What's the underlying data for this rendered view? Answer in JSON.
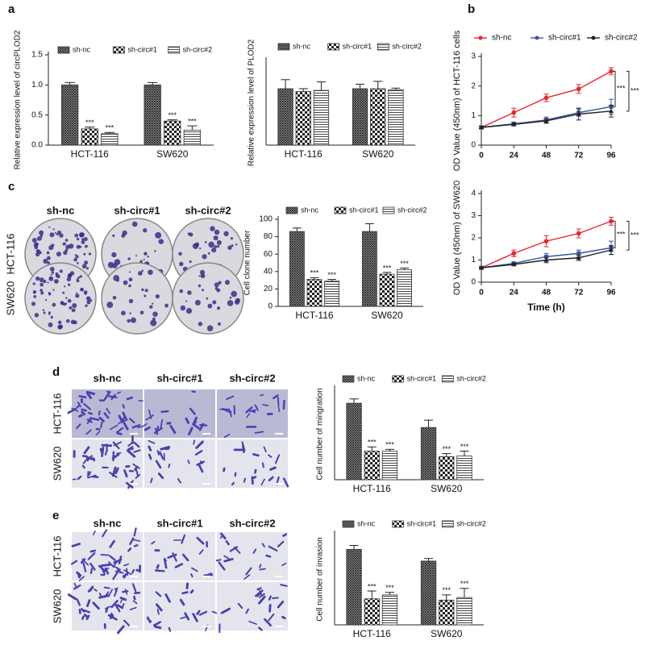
{
  "panel_labels": [
    "a",
    "b",
    "c",
    "d",
    "e"
  ],
  "image_panels": [
    {
      "columns": [
        "sh-nc",
        "sh-circ#1",
        "sh-circ#2"
      ],
      "rows": [
        "HCT-116",
        "SW620"
      ]
    },
    {
      "columns": [
        "sh-nc",
        "sh-circ#1",
        "sh-circ#2"
      ],
      "rows": [
        "HCT-116",
        "SW620"
      ]
    },
    {
      "columns": [
        "sh-nc",
        "sh-circ#1",
        "sh-circ#2"
      ],
      "rows": [
        "HCT-116",
        "SW620"
      ]
    }
  ],
  "chart_data": [
    {
      "type": "bar",
      "ylabel": "Relative expression level of circPLOD2",
      "categories": [
        "HCT-116",
        "SW620"
      ],
      "ylim": [
        0,
        1.5
      ],
      "yticks": [
        {
          "value": 0,
          "label": "0.0"
        },
        {
          "value": 0.5,
          "label": "0.5"
        },
        {
          "value": 1,
          "label": "1.0"
        },
        {
          "value": 1.5,
          "label": "1.5"
        }
      ],
      "series": [
        {
          "name": "sh-nc",
          "color": "#333333",
          "pattern": "crosshatch",
          "values": [
            1.0,
            1.0
          ],
          "errors": [
            0.04,
            0.04
          ]
        },
        {
          "name": "sh-circ#1",
          "color": "#333333",
          "pattern": "checker",
          "values": [
            0.27,
            0.4
          ],
          "errors": [
            0.03,
            0.02
          ],
          "annotations": [
            "***",
            "***"
          ]
        },
        {
          "name": "sh-circ#2",
          "color": "#333333",
          "pattern": "horizontal",
          "values": [
            0.19,
            0.25
          ],
          "errors": [
            0.02,
            0.07
          ],
          "annotations": [
            "***",
            "***"
          ]
        }
      ]
    },
    {
      "type": "bar",
      "ylabel": "Relative expression level of PLOD2",
      "categories": [
        "HCT-116",
        "SW620"
      ],
      "ylim": [
        0,
        1.5
      ],
      "series": [
        {
          "name": "sh-nc",
          "color": "#333333",
          "pattern": "crosshatch",
          "values": [
            1.0,
            1.0
          ],
          "errors": [
            0.16,
            0.08
          ]
        },
        {
          "name": "sh-circ#1",
          "color": "#333333",
          "pattern": "checker",
          "values": [
            0.95,
            1.0
          ],
          "errors": [
            0.05,
            0.13
          ]
        },
        {
          "name": "sh-circ#2",
          "color": "#333333",
          "pattern": "horizontal",
          "values": [
            0.97,
            0.98
          ],
          "errors": [
            0.15,
            0.03
          ]
        }
      ]
    },
    {
      "type": "line",
      "ylabel": "OD Value (450nm) of HCT-116 cells",
      "x": [
        0,
        24,
        48,
        72,
        96
      ],
      "xlim": [
        0,
        96
      ],
      "xticks": [
        0,
        24,
        48,
        72,
        96
      ],
      "ylim": [
        0,
        3
      ],
      "yticks": [
        0,
        1,
        2,
        3
      ],
      "annotations": [
        "***",
        "***"
      ],
      "series": [
        {
          "name": "sh-nc",
          "color": "#e8262a",
          "marker": "circle",
          "values": [
            0.6,
            1.1,
            1.6,
            1.9,
            2.5
          ],
          "errors": [
            0.05,
            0.15,
            0.13,
            0.15,
            0.12
          ]
        },
        {
          "name": "sh-circ#1",
          "color": "#3a53a4",
          "marker": "square",
          "values": [
            0.6,
            0.72,
            0.85,
            1.1,
            1.3
          ],
          "errors": [
            0.04,
            0.06,
            0.1,
            0.12,
            0.25
          ]
        },
        {
          "name": "sh-circ#2",
          "color": "#222222",
          "marker": "triangle",
          "values": [
            0.6,
            0.7,
            0.82,
            1.05,
            1.15
          ],
          "errors": [
            0.04,
            0.05,
            0.08,
            0.2,
            0.2
          ]
        }
      ]
    },
    {
      "type": "line",
      "ylabel": "OD Value (450nm) of SW620",
      "xlabel": "Time (h)",
      "x": [
        0,
        24,
        48,
        72,
        96
      ],
      "xlim": [
        0,
        96
      ],
      "xticks": [
        0,
        24,
        48,
        72,
        96
      ],
      "ylim": [
        0,
        4
      ],
      "yticks": [
        0,
        1,
        2,
        3,
        4
      ],
      "annotations": [
        "***",
        "***"
      ],
      "series": [
        {
          "color": "#e8262a",
          "marker": "circle",
          "values": [
            0.65,
            1.3,
            1.85,
            2.2,
            2.75
          ],
          "errors": [
            0.05,
            0.15,
            0.25,
            0.2,
            0.18
          ]
        },
        {
          "color": "#3a53a4",
          "marker": "square",
          "values": [
            0.65,
            0.85,
            1.15,
            1.3,
            1.55
          ],
          "errors": [
            0.04,
            0.06,
            0.15,
            0.15,
            0.3
          ]
        },
        {
          "color": "#222222",
          "marker": "triangle",
          "values": [
            0.65,
            0.8,
            1.0,
            1.1,
            1.45
          ],
          "errors": [
            0.04,
            0.05,
            0.12,
            0.12,
            0.2
          ]
        }
      ]
    },
    {
      "type": "bar",
      "ylabel": "Cell clone number",
      "categories": [
        "HCT-116",
        "SW620"
      ],
      "ylim": [
        0,
        100
      ],
      "yticks": [
        0,
        20,
        40,
        60,
        80,
        100
      ],
      "series": [
        {
          "name": "sh-nc",
          "color": "#333333",
          "pattern": "crosshatch",
          "values": [
            86,
            86
          ],
          "errors": [
            4,
            9
          ]
        },
        {
          "name": "sh-circ#1",
          "color": "#333333",
          "pattern": "checker",
          "values": [
            31,
            37
          ],
          "errors": [
            2,
            2
          ],
          "annotations": [
            "***",
            "***"
          ]
        },
        {
          "name": "sh-circ#2",
          "color": "#333333",
          "pattern": "horizontal",
          "values": [
            29,
            42
          ],
          "errors": [
            2,
            2
          ],
          "annotations": [
            "***",
            "***"
          ]
        }
      ]
    },
    {
      "type": "bar",
      "ylabel": "Cell number of mingration",
      "categories": [
        "HCT-116",
        "SW620"
      ],
      "ylim": [
        0,
        150
      ],
      "series": [
        {
          "name": "sh-nc",
          "color": "#333333",
          "pattern": "crosshatch",
          "values": [
            126,
            86
          ],
          "errors": [
            7,
            12
          ]
        },
        {
          "name": "sh-circ#1",
          "color": "#333333",
          "pattern": "checker",
          "values": [
            47,
            38
          ],
          "errors": [
            7,
            5
          ],
          "annotations": [
            "***",
            "***"
          ]
        },
        {
          "name": "sh-circ#2",
          "color": "#333333",
          "pattern": "horizontal",
          "values": [
            47,
            39
          ],
          "errors": [
            3,
            8
          ],
          "annotations": [
            "***",
            "***"
          ]
        }
      ]
    },
    {
      "type": "bar",
      "ylabel": "Cell number of invasion",
      "categories": [
        "HCT-116",
        "SW620"
      ],
      "ylim": [
        0,
        70
      ],
      "series": [
        {
          "name": "sh-nc",
          "color": "#333333",
          "pattern": "crosshatch",
          "values": [
            58,
            49
          ],
          "errors": [
            3,
            2
          ]
        },
        {
          "name": "sh-circ#1",
          "color": "#333333",
          "pattern": "checker",
          "values": [
            20,
            19
          ],
          "errors": [
            6,
            4
          ],
          "annotations": [
            "***",
            "***"
          ]
        },
        {
          "name": "sh-circ#2",
          "color": "#333333",
          "pattern": "horizontal",
          "values": [
            23,
            21
          ],
          "errors": [
            2,
            7
          ],
          "annotations": [
            "***",
            "***"
          ]
        }
      ]
    }
  ]
}
